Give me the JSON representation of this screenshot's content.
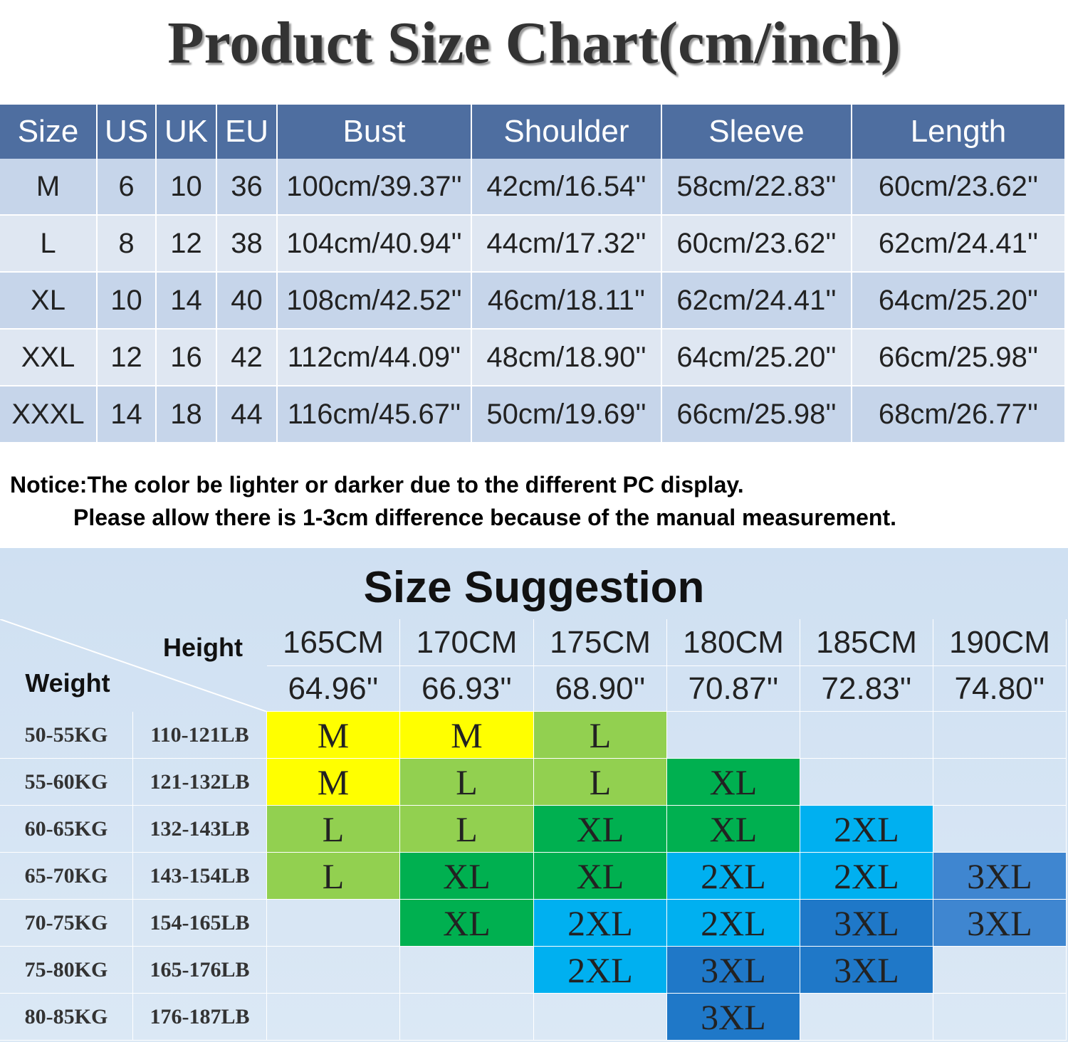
{
  "title": "Product Size Chart(cm/inch)",
  "size_table": {
    "headers": [
      "Size",
      "US",
      "UK",
      "EU",
      "Bust",
      "Shoulder",
      "Sleeve",
      "Length"
    ],
    "rows": [
      [
        "M",
        "6",
        "10",
        "36",
        "100cm/39.37''",
        "42cm/16.54''",
        "58cm/22.83''",
        "60cm/23.62''"
      ],
      [
        "L",
        "8",
        "12",
        "38",
        "104cm/40.94''",
        "44cm/17.32''",
        "60cm/23.62''",
        "62cm/24.41''"
      ],
      [
        "XL",
        "10",
        "14",
        "40",
        "108cm/42.52''",
        "46cm/18.11''",
        "62cm/24.41''",
        "64cm/25.20''"
      ],
      [
        "XXL",
        "12",
        "16",
        "42",
        "112cm/44.09''",
        "48cm/18.90''",
        "64cm/25.20''",
        "66cm/25.98''"
      ],
      [
        "XXXL",
        "14",
        "18",
        "44",
        "116cm/45.67''",
        "50cm/19.69''",
        "66cm/25.98''",
        "68cm/26.77''"
      ]
    ]
  },
  "notice": [
    "Notice:The color be lighter or darker due to the different PC display.",
    "Please allow there is 1-3cm difference because of the manual measurement."
  ],
  "suggestion": {
    "title": "Size Suggestion",
    "height_label": "Height",
    "weight_label": "Weight",
    "heights_cm": [
      "165CM",
      "170CM",
      "175CM",
      "180CM",
      "185CM",
      "190CM"
    ],
    "heights_in": [
      "64.96''",
      "66.93''",
      "68.90''",
      "70.87''",
      "72.83''",
      "74.80''"
    ],
    "rows": [
      {
        "kg": "50-55KG",
        "lb": "110-121LB",
        "sizes": [
          {
            "label": "M",
            "color": "#ffff00"
          },
          {
            "label": "M",
            "color": "#ffff00"
          },
          {
            "label": "L",
            "color": "#92d050"
          },
          null,
          null,
          null
        ]
      },
      {
        "kg": "55-60KG",
        "lb": "121-132LB",
        "sizes": [
          {
            "label": "M",
            "color": "#ffff00"
          },
          {
            "label": "L",
            "color": "#92d050"
          },
          {
            "label": "L",
            "color": "#92d050"
          },
          {
            "label": "XL",
            "color": "#00b050"
          },
          null,
          null
        ]
      },
      {
        "kg": "60-65KG",
        "lb": "132-143LB",
        "sizes": [
          {
            "label": "L",
            "color": "#92d050"
          },
          {
            "label": "L",
            "color": "#92d050"
          },
          {
            "label": "XL",
            "color": "#00b050"
          },
          {
            "label": "XL",
            "color": "#00b050"
          },
          {
            "label": "2XL",
            "color": "#00b0f0"
          },
          null
        ]
      },
      {
        "kg": "65-70KG",
        "lb": "143-154LB",
        "sizes": [
          {
            "label": "L",
            "color": "#92d050"
          },
          {
            "label": "XL",
            "color": "#00b050"
          },
          {
            "label": "XL",
            "color": "#00b050"
          },
          {
            "label": "2XL",
            "color": "#00b0f0"
          },
          {
            "label": "2XL",
            "color": "#00b0f0"
          },
          {
            "label": "3XL",
            "color": "#3f86d0"
          }
        ]
      },
      {
        "kg": "70-75KG",
        "lb": "154-165LB",
        "sizes": [
          null,
          {
            "label": "XL",
            "color": "#00b050"
          },
          {
            "label": "2XL",
            "color": "#00b0f0"
          },
          {
            "label": "2XL",
            "color": "#00b0f0"
          },
          {
            "label": "3XL",
            "color": "#1f78c8"
          },
          {
            "label": "3XL",
            "color": "#3f86d0"
          }
        ]
      },
      {
        "kg": "75-80KG",
        "lb": "165-176LB",
        "sizes": [
          null,
          null,
          {
            "label": "2XL",
            "color": "#00b0f0"
          },
          {
            "label": "3XL",
            "color": "#1f78c8"
          },
          {
            "label": "3XL",
            "color": "#1f78c8"
          },
          null
        ]
      },
      {
        "kg": "80-85KG",
        "lb": "176-187LB",
        "sizes": [
          null,
          null,
          null,
          {
            "label": "3XL",
            "color": "#1f78c8"
          },
          null,
          null
        ]
      }
    ]
  }
}
